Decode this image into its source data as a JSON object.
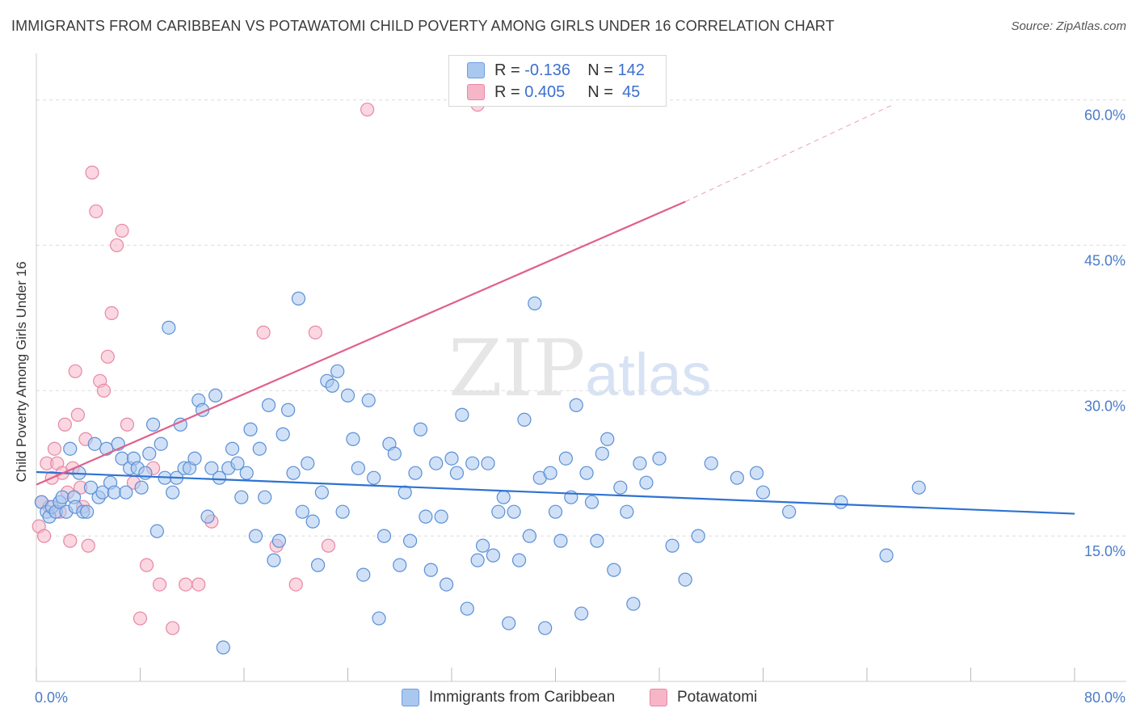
{
  "header": {
    "title": "IMMIGRANTS FROM CARIBBEAN VS POTAWATOMI CHILD POVERTY AMONG GIRLS UNDER 16 CORRELATION CHART",
    "source": "Source: ZipAtlas.com"
  },
  "watermark": {
    "zip": "ZIP",
    "atlas": "atlas"
  },
  "legend": {
    "rows": [
      {
        "r_label": "R =",
        "r_value": "-0.136",
        "n_label": "N =",
        "n_value": "142",
        "color": "#a9c8f0"
      },
      {
        "r_label": "R =",
        "r_value": "0.405",
        "n_label": "N =",
        "n_value": "45",
        "color": "#f6b6c8"
      }
    ]
  },
  "bottom_legend": {
    "items": [
      {
        "label": "Immigrants from Caribbean",
        "color": "#a9c8f0"
      },
      {
        "label": "Potawatomi",
        "color": "#f6b6c8"
      }
    ]
  },
  "chart_data": {
    "type": "scatter",
    "title": "IMMIGRANTS FROM CARIBBEAN VS POTAWATOMI CHILD POVERTY AMONG GIRLS UNDER 16 CORRELATION CHART",
    "ylabel": "Child Poverty Among Girls Under 16",
    "xlabel": "",
    "xlim": [
      0,
      80
    ],
    "ylim": [
      0,
      60
    ],
    "x_tick_labels": [
      "0.0%",
      "80.0%"
    ],
    "y_tick_labels": [
      "15.0%",
      "30.0%",
      "45.0%",
      "60.0%"
    ],
    "y_ticks": [
      15,
      30,
      45,
      60
    ],
    "grid": "horizontal dashed",
    "colors": {
      "blue_marker": "#a9c8f0",
      "blue_edge": "#5b8fd6",
      "blue_line": "#2e72d2",
      "pink_marker": "#f6b6c8",
      "pink_edge": "#e887a6",
      "pink_line": "#e0608a"
    },
    "series": [
      {
        "name": "Immigrants from Caribbean",
        "x": [
          0.4,
          0.8,
          1.0,
          1.2,
          1.5,
          1.8,
          2.0,
          2.3,
          2.6,
          2.9,
          3.0,
          3.3,
          3.6,
          3.9,
          4.2,
          4.5,
          4.8,
          5.1,
          5.4,
          5.7,
          6.0,
          6.3,
          6.6,
          6.9,
          7.2,
          7.5,
          7.8,
          8.1,
          8.4,
          8.7,
          9.0,
          9.3,
          9.6,
          9.9,
          10.2,
          10.5,
          10.8,
          11.1,
          11.4,
          11.8,
          12.2,
          12.5,
          12.8,
          13.2,
          13.5,
          13.8,
          14.1,
          14.4,
          14.8,
          15.1,
          15.5,
          15.8,
          16.2,
          16.5,
          16.9,
          17.2,
          17.6,
          17.9,
          18.3,
          18.7,
          19.0,
          19.4,
          19.8,
          20.2,
          20.5,
          20.9,
          21.3,
          21.7,
          22.0,
          22.4,
          22.8,
          23.2,
          23.6,
          24.0,
          24.4,
          24.8,
          25.2,
          25.6,
          26.0,
          26.4,
          26.8,
          27.2,
          27.6,
          28.0,
          28.4,
          28.8,
          29.2,
          29.6,
          30.0,
          30.4,
          30.8,
          31.2,
          31.6,
          32.0,
          32.4,
          32.8,
          33.2,
          33.6,
          34.0,
          34.4,
          34.8,
          35.2,
          35.6,
          36.0,
          36.4,
          36.8,
          37.2,
          37.6,
          38.0,
          38.4,
          38.8,
          39.2,
          39.6,
          40.0,
          40.4,
          40.8,
          41.2,
          41.6,
          42.0,
          42.4,
          42.8,
          43.2,
          43.6,
          44.0,
          44.5,
          45.0,
          45.5,
          46.0,
          46.5,
          47.0,
          48.0,
          49.0,
          50.0,
          51.0,
          52.0,
          54.0,
          55.5,
          56.0,
          58.0,
          62.0,
          65.5,
          68.0
        ],
        "y": [
          18.5,
          17.5,
          17.0,
          18.0,
          17.5,
          18.5,
          19.0,
          17.5,
          24.0,
          19.0,
          18.0,
          21.5,
          17.5,
          17.5,
          20.0,
          24.5,
          19.0,
          19.5,
          24.0,
          20.5,
          19.5,
          24.5,
          23.0,
          19.5,
          22.0,
          23.0,
          22.0,
          20.0,
          21.5,
          23.5,
          26.5,
          15.5,
          24.5,
          21.0,
          36.5,
          19.5,
          21.0,
          26.5,
          22.0,
          22.0,
          23.0,
          29.0,
          28.0,
          17.0,
          22.0,
          29.5,
          21.0,
          3.5,
          22.0,
          24.0,
          22.5,
          19.0,
          21.5,
          26.0,
          15.0,
          24.0,
          19.0,
          28.5,
          12.5,
          14.5,
          25.5,
          28.0,
          21.5,
          39.5,
          17.5,
          22.5,
          16.5,
          12.0,
          19.5,
          31.0,
          30.5,
          32.0,
          17.5,
          29.5,
          25.0,
          22.0,
          11.0,
          29.0,
          21.0,
          6.5,
          15.0,
          24.5,
          23.5,
          12.0,
          19.5,
          14.5,
          21.5,
          26.0,
          17.0,
          11.5,
          22.5,
          17.0,
          10.0,
          23.0,
          21.5,
          27.5,
          7.5,
          22.5,
          12.5,
          14.0,
          22.5,
          13.0,
          17.5,
          19.0,
          6.0,
          17.5,
          12.5,
          27.0,
          15.0,
          39.0,
          21.0,
          5.5,
          21.5,
          17.5,
          14.5,
          23.0,
          19.0,
          28.5,
          7.0,
          21.5,
          18.5,
          14.5,
          23.5,
          25.0,
          11.5,
          20.0,
          17.5,
          8.0,
          22.5,
          20.5,
          23.0,
          14.0,
          10.5,
          15.0,
          22.5,
          21.0,
          21.5,
          19.5,
          17.5,
          18.5,
          13.0,
          20.0
        ],
        "trend": {
          "x": [
            0,
            80
          ],
          "y": [
            21.6,
            17.3
          ]
        }
      },
      {
        "name": "Potawatomi",
        "x": [
          0.2,
          0.4,
          0.6,
          0.8,
          1.0,
          1.2,
          1.4,
          1.6,
          1.8,
          2.0,
          2.2,
          2.4,
          2.6,
          2.8,
          3.0,
          3.2,
          3.4,
          3.6,
          3.8,
          4.0,
          4.3,
          4.6,
          4.9,
          5.2,
          5.5,
          5.8,
          6.2,
          6.6,
          7.0,
          7.5,
          8.0,
          8.5,
          9.0,
          9.5,
          10.5,
          11.5,
          12.5,
          13.5,
          17.5,
          18.5,
          20.0,
          21.5,
          22.5,
          25.5,
          34.0
        ],
        "y": [
          16.0,
          18.5,
          15.0,
          22.5,
          18.0,
          21.0,
          24.0,
          22.5,
          17.5,
          21.5,
          26.5,
          19.5,
          14.5,
          22.0,
          32.0,
          27.5,
          20.0,
          18.0,
          25.0,
          14.0,
          52.5,
          48.5,
          31.0,
          30.0,
          33.5,
          38.0,
          45.0,
          46.5,
          26.5,
          20.5,
          6.5,
          12.0,
          22.0,
          10.0,
          5.5,
          10.0,
          10.0,
          16.5,
          36.0,
          14.0,
          10.0,
          36.0,
          14.0,
          59.0,
          59.5
        ],
        "trend": {
          "x": [
            0,
            50
          ],
          "y": [
            20.3,
            49.5
          ]
        },
        "trend_extension": {
          "x": [
            50,
            66
          ],
          "y": [
            49.5,
            59.5
          ]
        }
      }
    ]
  }
}
